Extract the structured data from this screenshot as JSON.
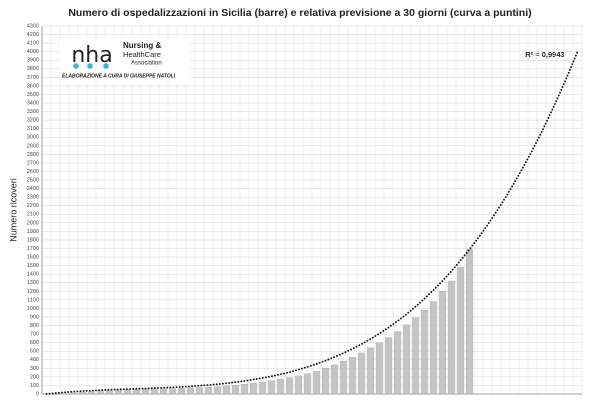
{
  "chart_data": {
    "type": "bar",
    "title": "Numero di ospedalizzazioni in Sicilia (barre) e relativa previsione a 30 giorni (curva a puntini)",
    "y_label": "Numero ricoveri",
    "annotation": "R² = 0,9943",
    "logo": {
      "mark": "nha",
      "lines": [
        "Nursing &",
        "HealthCare",
        "Association"
      ],
      "credit": "ELABORAZIONE A CURA DI GIUSEPPE NATOLI"
    },
    "categories": [
      null,
      null,
      null,
      null,
      null,
      null,
      null,
      null,
      null,
      null,
      null,
      null,
      null,
      null,
      null,
      null,
      null,
      null,
      null,
      null,
      null,
      null,
      null,
      null,
      null,
      null,
      null,
      null,
      null,
      null,
      null,
      null,
      null,
      null,
      null,
      null,
      null,
      null,
      null,
      null,
      null,
      null,
      null,
      null,
      null,
      null,
      null,
      null,
      null,
      null,
      null,
      null,
      null,
      null,
      null,
      null,
      null,
      null,
      null,
      null
    ],
    "series": [
      {
        "type": "bar",
        "color": "#c4c4c4",
        "values": [
          0,
          3,
          8,
          15,
          22,
          30,
          38,
          45,
          50,
          53,
          55,
          58,
          60,
          62,
          65,
          68,
          72,
          75,
          80,
          86,
          95,
          104,
          115,
          128,
          140,
          155,
          172,
          190,
          212,
          238,
          265,
          300,
          340,
          385,
          430,
          480,
          540,
          600,
          660,
          730,
          810,
          890,
          980,
          1080,
          1200,
          1320,
          1480,
          1690,
          null,
          null,
          null,
          null,
          null,
          null,
          null,
          null,
          null,
          null,
          null,
          null
        ]
      },
      {
        "type": "line",
        "color": "#111111",
        "dotted": true,
        "values": [
          0,
          11,
          20,
          28,
          34,
          40,
          45,
          50,
          54,
          57,
          61,
          65,
          69,
          73,
          78,
          83,
          89,
          97,
          105,
          114,
          126,
          138,
          152,
          169,
          187,
          207,
          230,
          255,
          285,
          316,
          351,
          390,
          432,
          478,
          528,
          583,
          642,
          707,
          777,
          852,
          933,
          1020,
          1115,
          1215,
          1322,
          1436,
          1560,
          1689,
          1828,
          1975,
          2131,
          2296,
          2472,
          2657,
          2852,
          3059,
          3277,
          3506,
          3747,
          4000
        ]
      }
    ],
    "ylim": [
      0,
      4300
    ],
    "yticks": [
      0,
      100,
      200,
      300,
      400,
      500,
      600,
      700,
      800,
      900,
      1000,
      1100,
      1200,
      1300,
      1400,
      1500,
      1600,
      1700,
      1800,
      1900,
      2000,
      2100,
      2200,
      2300,
      2400,
      2500,
      2600,
      2700,
      2800,
      2900,
      3000,
      3100,
      3200,
      3300,
      3400,
      3500,
      3600,
      3700,
      3800,
      3900,
      4000,
      4100,
      4200,
      4300
    ],
    "grid": true
  }
}
